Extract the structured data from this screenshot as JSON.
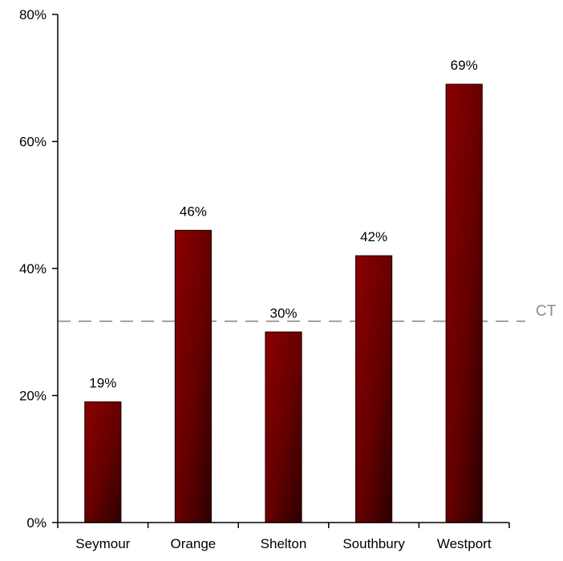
{
  "chart_data": {
    "type": "bar",
    "categories": [
      "Seymour",
      "Orange",
      "Shelton",
      "Southbury",
      "Westport"
    ],
    "values": [
      19,
      46,
      30,
      42,
      69
    ],
    "value_labels": [
      "19%",
      "46%",
      "30%",
      "42%",
      "69%"
    ],
    "ylim": [
      0,
      80
    ],
    "yticks": [
      0,
      20,
      40,
      60,
      80
    ],
    "ytick_labels": [
      "0%",
      "20%",
      "40%",
      "60%",
      "80%"
    ],
    "reference_line": {
      "label": "CT",
      "value": 31.7
    },
    "grid": false,
    "colors": {
      "bar_light": "#8b0000",
      "bar_dark": "#2b0000",
      "reference": "#8c8c8c"
    }
  }
}
